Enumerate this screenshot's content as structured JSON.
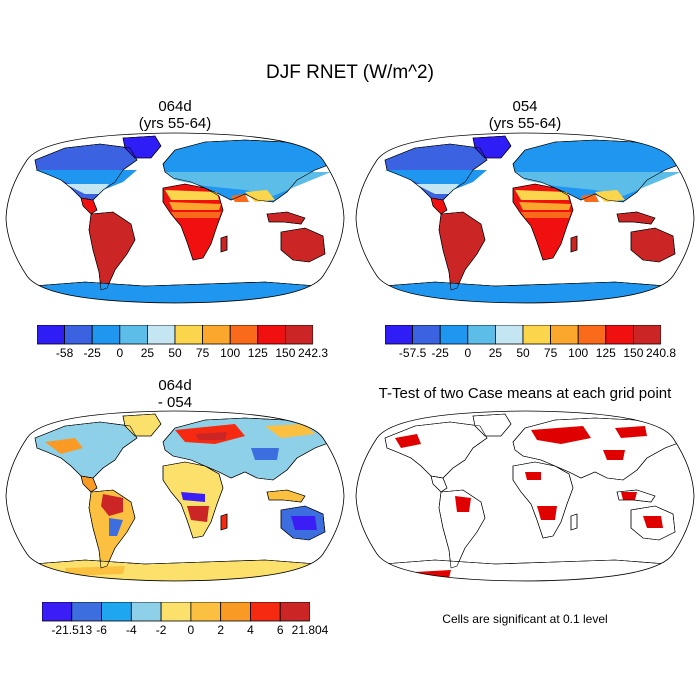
{
  "figure_title": "DJF RNET (W/m^2)",
  "chart_data": [
    {
      "type": "heatmap",
      "panel": "top-left",
      "title_lines": [
        "064d",
        "(yrs 55-64)"
      ],
      "projection": "Robinson",
      "colorbar": {
        "labels": [
          "-58",
          "-25",
          "0",
          "25",
          "50",
          "75",
          "100",
          "125",
          "150",
          "242.3"
        ],
        "colors": [
          "#2e1df5",
          "#3b62e0",
          "#1f97f0",
          "#5cbde8",
          "#c4e6f2",
          "#fbd54b",
          "#fba62d",
          "#f96a1a",
          "#f01010",
          "#cc2525"
        ]
      }
    },
    {
      "type": "heatmap",
      "panel": "top-right",
      "title_lines": [
        "054",
        "(yrs 55-64)"
      ],
      "projection": "Robinson",
      "colorbar": {
        "labels": [
          "-57.5",
          "-25",
          "0",
          "25",
          "50",
          "75",
          "100",
          "125",
          "150",
          "240.8"
        ],
        "colors": [
          "#2e1df5",
          "#3b62e0",
          "#1f97f0",
          "#5cbde8",
          "#c4e6f2",
          "#fbd54b",
          "#fba62d",
          "#f96a1a",
          "#f01010",
          "#cc2525"
        ]
      }
    },
    {
      "type": "heatmap",
      "panel": "bottom-left",
      "title_lines": [
        "064d",
        "- 054"
      ],
      "projection": "Robinson",
      "colorbar": {
        "labels": [
          "-21.513",
          "-6",
          "-4",
          "-2",
          "0",
          "2",
          "4",
          "6",
          "21.804"
        ],
        "colors": [
          "#3b1df5",
          "#3d6ee0",
          "#1fa6f0",
          "#8ed0e8",
          "#fbe16b",
          "#fbc040",
          "#f99a25",
          "#f52a10",
          "#cc2525"
        ]
      }
    },
    {
      "type": "heatmap",
      "panel": "bottom-right",
      "title_lines": [
        "T-Test of two Case means at each grid point"
      ],
      "projection": "Robinson",
      "significance_color": "#e00000",
      "note": "Cells are significant at 0.1 level"
    }
  ]
}
